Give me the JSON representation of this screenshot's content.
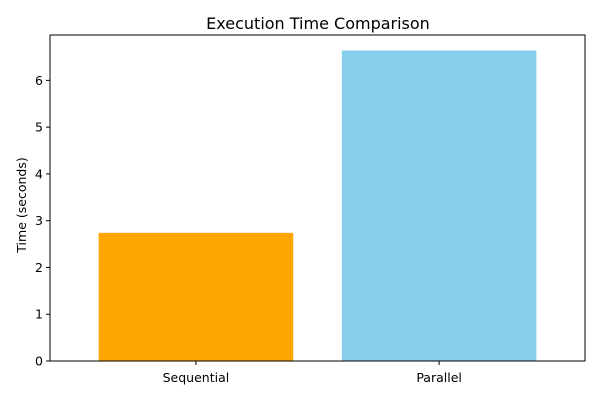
{
  "chart_data": {
    "type": "bar",
    "title": "Execution Time Comparison",
    "xlabel": "",
    "ylabel": "Time (seconds)",
    "categories": [
      "Sequential",
      "Parallel"
    ],
    "values": [
      2.74,
      6.64
    ],
    "colors": [
      "#ffa500",
      "#87ceeb"
    ],
    "ylim": [
      0,
      6.97
    ],
    "yticks": [
      0,
      1,
      2,
      3,
      4,
      5,
      6
    ],
    "grid": false,
    "legend": "none"
  }
}
